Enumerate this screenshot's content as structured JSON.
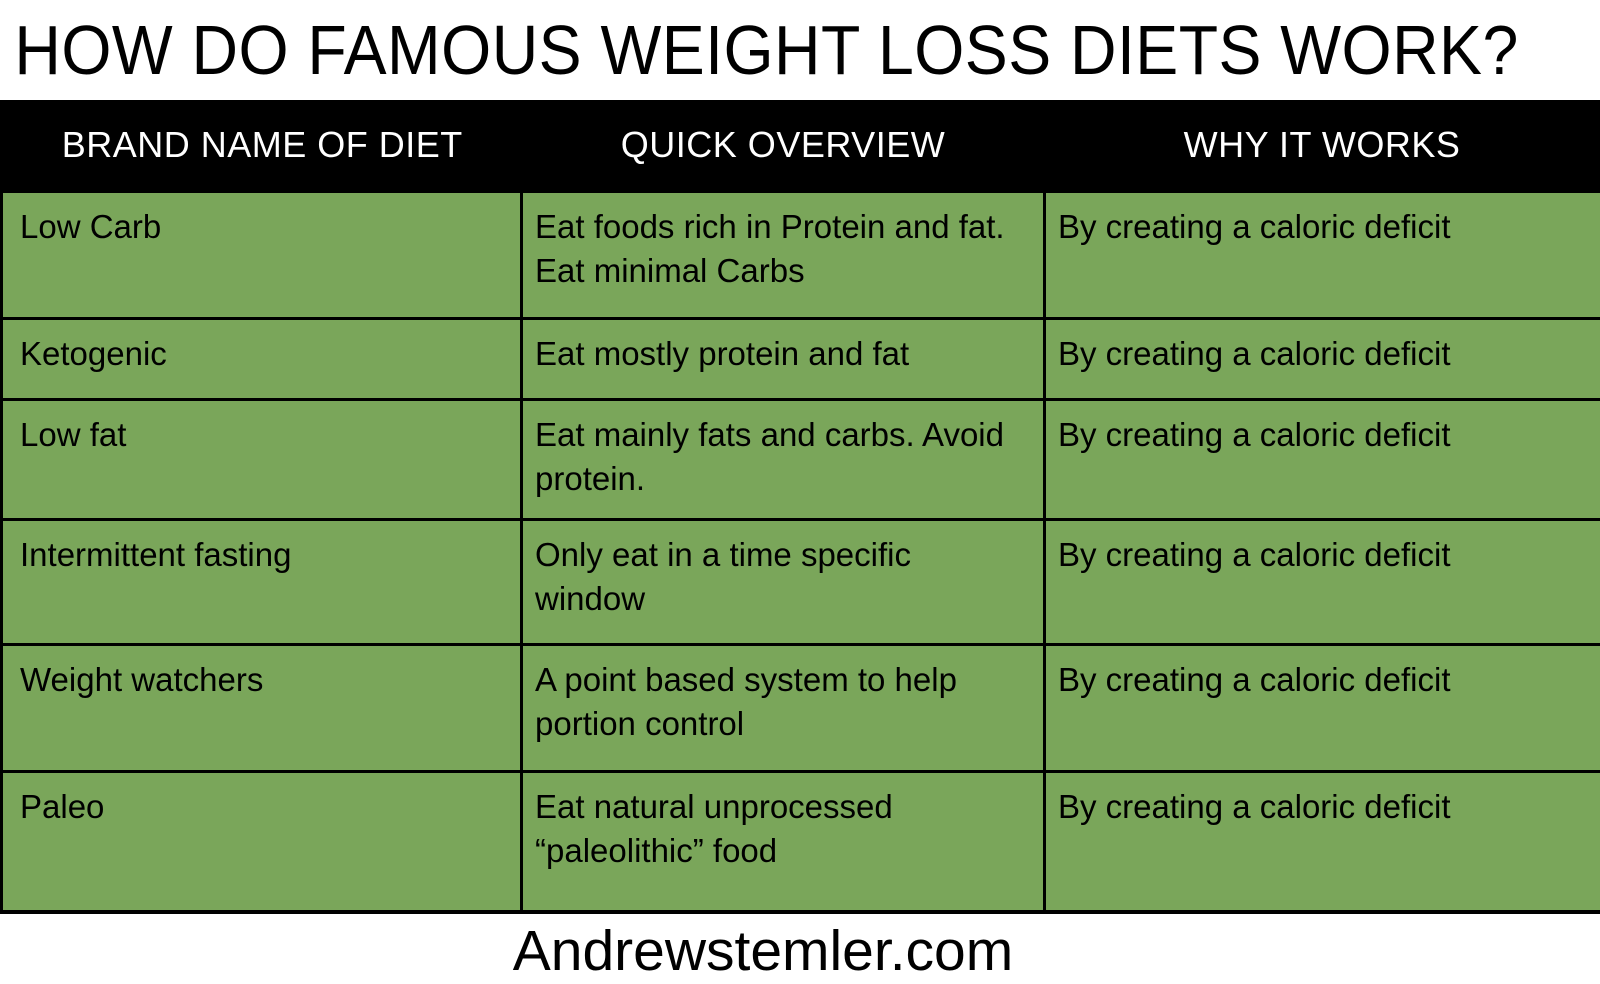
{
  "page": {
    "title": "HOW DO FAMOUS WEIGHT LOSS DIETS WORK?",
    "footer": "Andrewstemler.com"
  },
  "table": {
    "columns": [
      "BRAND NAME OF DIET",
      "QUICK OVERVIEW",
      "WHY IT WORKS"
    ],
    "rows": [
      {
        "brand": "Low Carb",
        "overview": "Eat foods rich in Protein and fat. Eat minimal Carbs",
        "why": "By creating a caloric deficit"
      },
      {
        "brand": "Ketogenic",
        "overview": "Eat mostly protein and fat",
        "why": "By creating a caloric deficit"
      },
      {
        "brand": "Low fat",
        "overview": "Eat mainly fats and carbs. Avoid protein.",
        "why": "By creating a caloric deficit"
      },
      {
        "brand": "Intermittent fasting",
        "overview": "Only eat in a time specific window",
        "why": "By creating a caloric deficit"
      },
      {
        "brand": "Weight watchers",
        "overview": "A point based system to help portion control",
        "why": "By creating a caloric deficit"
      },
      {
        "brand": "Paleo",
        "overview": "Eat natural unprocessed “paleolithic” food",
        "why": "By creating a caloric deficit"
      }
    ]
  },
  "colors": {
    "cell_green": "#7aa65a",
    "header_bg": "#000000",
    "header_text": "#ffffff",
    "body_text": "#000000",
    "border": "#000000"
  }
}
